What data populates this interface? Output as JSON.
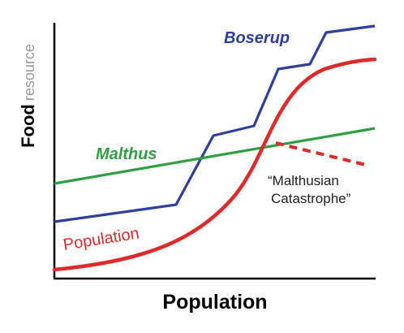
{
  "axes": {
    "x_label": "Population",
    "y_label_main": "Food",
    "y_label_secondary": "resource"
  },
  "curves": {
    "boserup": {
      "label": "Boserup",
      "color": "#2e3f9e"
    },
    "malthus": {
      "label": "Malthus",
      "color": "#2ea043"
    },
    "population": {
      "label": "Population",
      "color": "#e02a2a"
    }
  },
  "annotation": {
    "line1": "“Malthusian",
    "line2": "Catastrophe”"
  },
  "colors": {
    "axis": "#000000",
    "secondary_text": "#9a9a9a",
    "annotation_text": "#222222"
  }
}
